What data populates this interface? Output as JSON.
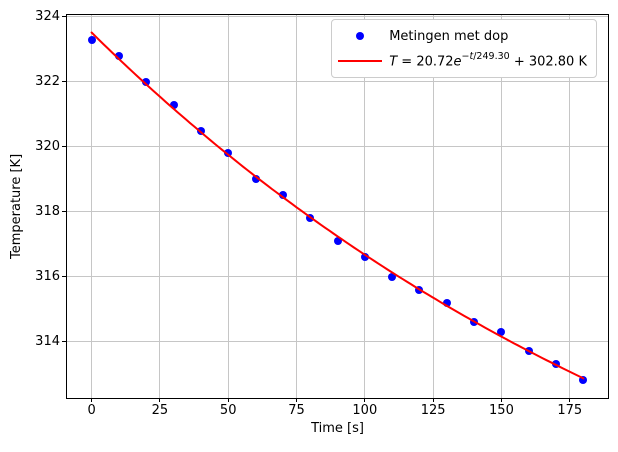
{
  "chart_data": {
    "type": "scatter",
    "title": "",
    "xlabel": "Time [s]",
    "ylabel": "Temperature [K]",
    "xlim": [
      -9,
      189
    ],
    "ylim": [
      312.26,
      324.06
    ],
    "xticks": [
      0,
      25,
      50,
      75,
      100,
      125,
      150,
      175
    ],
    "yticks": [
      314,
      316,
      318,
      320,
      322,
      324
    ],
    "grid": true,
    "grid_color": "#c6c6c6",
    "legend_position": "upper right",
    "series": [
      {
        "name": "Metingen met dop",
        "type": "scatter",
        "marker": "circle",
        "color": "#0000ff",
        "x": [
          0,
          10,
          20,
          30,
          40,
          50,
          60,
          70,
          80,
          90,
          100,
          110,
          120,
          130,
          140,
          150,
          160,
          170,
          180
        ],
        "y": [
          323.3,
          322.8,
          322.0,
          321.3,
          320.5,
          319.8,
          319.0,
          318.5,
          317.8,
          317.1,
          316.6,
          316.0,
          315.6,
          315.2,
          314.6,
          314.3,
          313.7,
          313.3,
          312.8
        ]
      },
      {
        "name": "T = 20.72e^(−t/249.30) + 302.80 K",
        "type": "line",
        "color": "#ff0000",
        "fit_model": "T(t) = A·e^(−t/tau) + C",
        "A": 20.72,
        "tau": 249.3,
        "C": 302.8,
        "x_start": 0,
        "x_end": 180,
        "label_parts": {
          "T": "T",
          "eq": " = 20.72",
          "e": "e",
          "sup_minus": "−",
          "sup_t": "t",
          "sup_rest": "/249.30",
          "tail": " + 302.80 K"
        }
      }
    ]
  }
}
